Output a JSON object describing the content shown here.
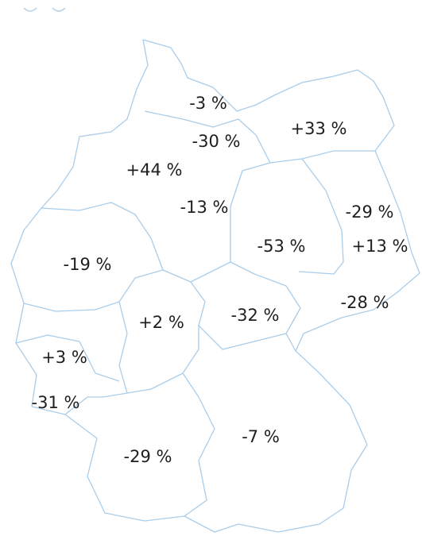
{
  "regions": [
    {
      "label": "-3 %"
    },
    {
      "label": "-30 %"
    },
    {
      "label": "+33 %"
    },
    {
      "label": "+44 %"
    },
    {
      "label": "-13 %"
    },
    {
      "label": "-29 %"
    },
    {
      "label": "-53 %"
    },
    {
      "label": "+13 %"
    },
    {
      "label": "-19 %"
    },
    {
      "label": "+2 %"
    },
    {
      "label": "-32 %"
    },
    {
      "label": "-28 %"
    },
    {
      "label": "+3 %"
    },
    {
      "label": "-31 %"
    },
    {
      "label": "-7 %"
    },
    {
      "label": "-29 %"
    }
  ]
}
